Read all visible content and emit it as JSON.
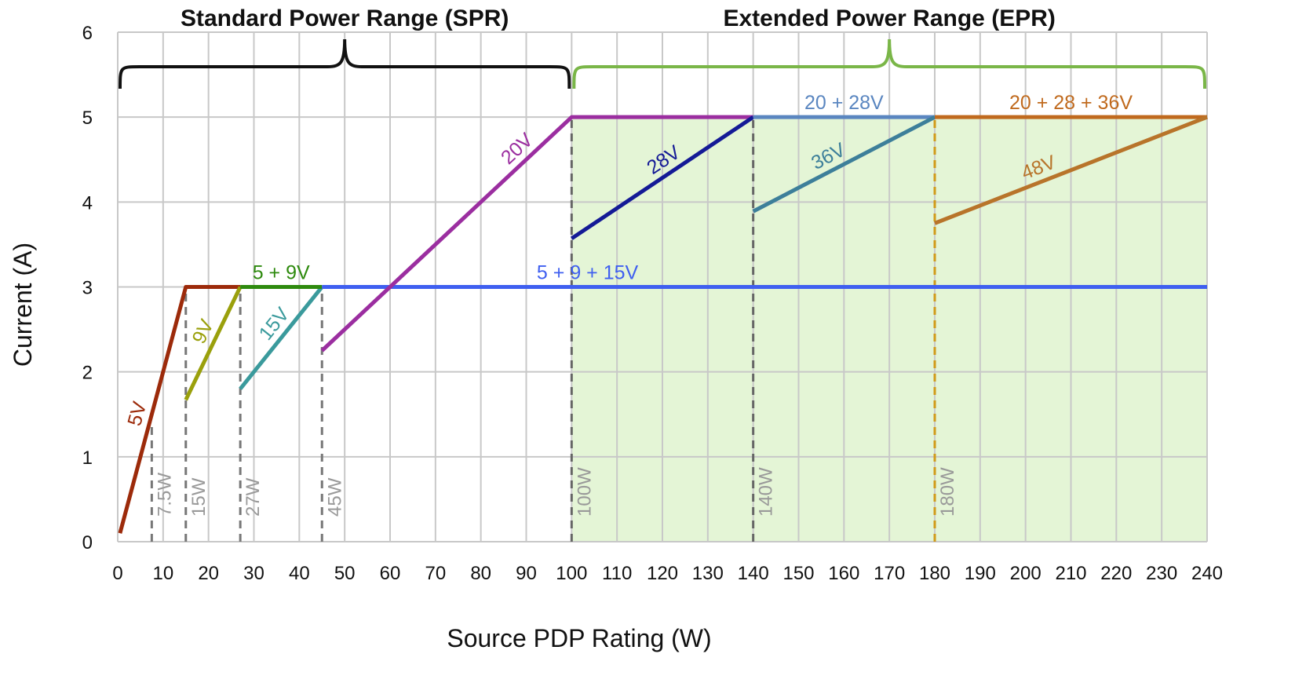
{
  "chart_data": {
    "type": "line",
    "xlabel": "Source PDP Rating (W)",
    "ylabel": "Current (A)",
    "xlim": [
      0,
      240
    ],
    "ylim": [
      0,
      6
    ],
    "x_ticks": [
      0,
      10,
      20,
      30,
      40,
      50,
      60,
      70,
      80,
      90,
      100,
      110,
      120,
      130,
      140,
      150,
      160,
      170,
      180,
      190,
      200,
      210,
      220,
      230,
      240
    ],
    "y_ticks": [
      0,
      1,
      2,
      3,
      4,
      5,
      6
    ],
    "grid": true,
    "ranges": [
      {
        "label": "Standard Power Range (SPR)",
        "from": 0,
        "to": 100,
        "color": "#111111"
      },
      {
        "label": "Extended Power Range (EPR)",
        "from": 100,
        "to": 240,
        "color": "#7ab648"
      }
    ],
    "epr_fill": {
      "from": 100,
      "to": 240,
      "ymax": 5,
      "color": "#e4f5d6"
    },
    "series": [
      {
        "name": "5V",
        "color": "#9c2a0a",
        "points": [
          [
            0.5,
            0.1
          ],
          [
            15,
            3
          ],
          [
            27,
            3
          ]
        ],
        "label_seg": 0,
        "label_at": 0.47
      },
      {
        "name": "9V",
        "color": "#9aa00c",
        "points": [
          [
            15,
            1.67
          ],
          [
            27,
            3
          ]
        ],
        "label_seg": 0,
        "label_at": 0.55
      },
      {
        "name": "15V",
        "color": "#3a9a9c",
        "points": [
          [
            27,
            1.8
          ],
          [
            45,
            3
          ]
        ],
        "label_seg": 0,
        "label_at": 0.55
      },
      {
        "name": "5 + 9V",
        "color": "#2e8a0e",
        "points": [
          [
            27,
            3
          ],
          [
            45,
            3
          ]
        ],
        "label_seg": 0,
        "label_at": 0.5
      },
      {
        "name": "5 + 9 + 15V",
        "color": "#3f5ff0",
        "points": [
          [
            45,
            3
          ],
          [
            240,
            3
          ]
        ],
        "label_seg": 0,
        "label_at": 0.3
      },
      {
        "name": "20V",
        "color": "#9b2ea0",
        "points": [
          [
            45,
            2.25
          ],
          [
            100,
            5
          ],
          [
            140,
            5
          ]
        ],
        "label_seg": 0,
        "label_at": 0.82
      },
      {
        "name": "28V",
        "color": "#141a96",
        "points": [
          [
            100,
            3.57
          ],
          [
            140,
            5
          ]
        ],
        "label_seg": 0,
        "label_at": 0.55
      },
      {
        "name": "20 + 28V",
        "color": "#5a86c0",
        "points": [
          [
            140,
            5
          ],
          [
            180,
            5
          ]
        ],
        "label_seg": 0,
        "label_at": 0.5
      },
      {
        "name": "36V",
        "color": "#3d7f9a",
        "points": [
          [
            140,
            3.89
          ],
          [
            180,
            5
          ]
        ],
        "label_seg": 0,
        "label_at": 0.45
      },
      {
        "name": "20 + 28 + 36V",
        "color": "#c06a1e",
        "points": [
          [
            180,
            5
          ],
          [
            240,
            5
          ]
        ],
        "label_seg": 0,
        "label_at": 0.5
      },
      {
        "name": "48V",
        "color": "#b8742a",
        "points": [
          [
            180,
            3.75
          ],
          [
            240,
            5
          ]
        ],
        "label_seg": 0,
        "label_at": 0.4
      }
    ],
    "markers": [
      {
        "label": "7.5W",
        "x": 7.5,
        "ytop": 1.4,
        "color": "#777777"
      },
      {
        "label": "15W",
        "x": 15,
        "ytop": 3,
        "color": "#777777"
      },
      {
        "label": "27W",
        "x": 27,
        "ytop": 3,
        "color": "#777777"
      },
      {
        "label": "45W",
        "x": 45,
        "ytop": 3,
        "color": "#777777"
      },
      {
        "label": "100W",
        "x": 100,
        "ytop": 5,
        "color": "#666666"
      },
      {
        "label": "140W",
        "x": 140,
        "ytop": 5,
        "color": "#666666"
      },
      {
        "label": "180W",
        "x": 180,
        "ytop": 5,
        "color": "#d19a1a"
      }
    ]
  }
}
